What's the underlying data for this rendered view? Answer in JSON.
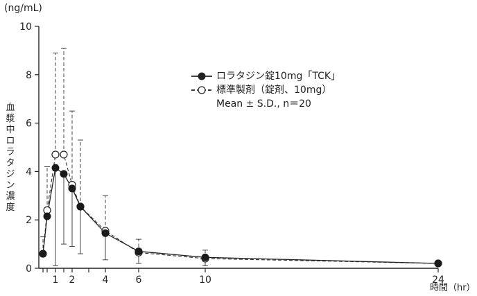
{
  "chart_data": {
    "type": "line",
    "unit_label": "(ng/mL)",
    "ylabel": "血漿中ロラタジン濃度",
    "xlabel": "時間（hr）",
    "xlim": [
      0,
      24
    ],
    "ylim": [
      0,
      10
    ],
    "x_ticks": [
      {
        "value": 0.25,
        "label": ""
      },
      {
        "value": 0.5,
        "label": ""
      },
      {
        "value": 1,
        "label": "1"
      },
      {
        "value": 1.5,
        "label": ""
      },
      {
        "value": 2,
        "label": "2"
      },
      {
        "value": 3,
        "label": ""
      },
      {
        "value": 4,
        "label": "4"
      },
      {
        "value": 6,
        "label": "6"
      },
      {
        "value": 10,
        "label": "10"
      },
      {
        "value": 24,
        "label": "24"
      }
    ],
    "y_ticks": [
      0,
      2,
      4,
      6,
      8,
      10
    ],
    "legend_position": "top-right",
    "legend_note": "Mean ± S.D., n＝20",
    "series": [
      {
        "name": "ロラタジン錠10mg「TCK」",
        "marker": "filled-circle",
        "line": "solid",
        "x": [
          0.25,
          0.5,
          1,
          1.5,
          2,
          2.5,
          4,
          6,
          10,
          24
        ],
        "y": [
          0.6,
          2.15,
          4.15,
          3.9,
          3.3,
          2.55,
          1.45,
          0.7,
          0.45,
          0.2
        ],
        "sd_upper": [
          1.3,
          4.2,
          8.9,
          9.1,
          6.5,
          5.3,
          3.0,
          1.2,
          0.75,
          0.3
        ],
        "sd_lower": [
          0.0,
          0.0,
          0.0,
          0.0,
          0.0,
          0.0,
          0.0,
          0.0,
          0.0,
          0.0
        ]
      },
      {
        "name": "標準製剤（錠剤、10mg）",
        "marker": "open-circle",
        "line": "dashed",
        "x": [
          0.25,
          0.5,
          1,
          1.5,
          2,
          2.5,
          4,
          6,
          10,
          24
        ],
        "y": [
          0.6,
          2.4,
          4.7,
          4.7,
          3.45,
          2.55,
          1.55,
          0.65,
          0.4,
          0.2
        ],
        "sd_upper": [
          1.3,
          4.2,
          8.9,
          9.1,
          6.5,
          5.3,
          3.0,
          1.2,
          0.75,
          0.3
        ],
        "sd_lower": [
          0.0,
          0.0,
          0.1,
          1.0,
          0.9,
          0.6,
          0.35,
          0.2,
          0.1,
          0.1
        ]
      }
    ]
  }
}
